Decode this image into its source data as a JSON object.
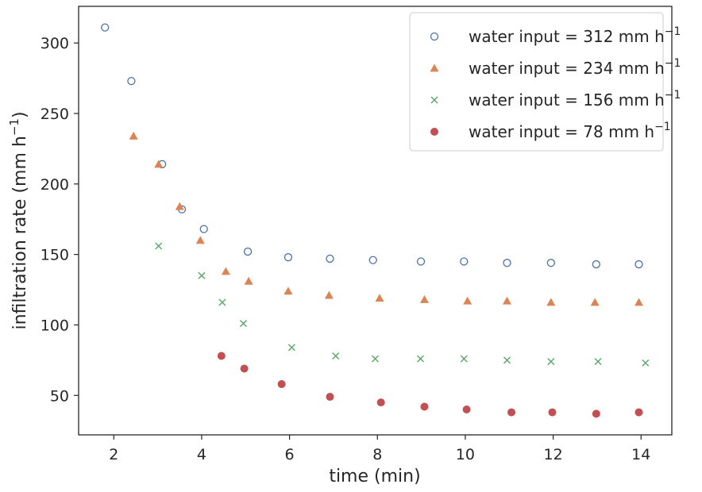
{
  "chart_data": {
    "type": "scatter",
    "title": "",
    "xlabel": "time (min)",
    "ylabel": "infiltration rate (mm h",
    "ylabel_sup": "−1",
    "ylabel_close": ")",
    "xlim": [
      1.2,
      14.7
    ],
    "ylim": [
      22,
      326
    ],
    "xticks": [
      2,
      4,
      6,
      8,
      10,
      12,
      14
    ],
    "yticks": [
      50,
      100,
      150,
      200,
      250,
      300
    ],
    "grid": false,
    "legend_position": "top-right",
    "series": [
      {
        "name": "water input = 312 mm h",
        "name_sup": "−1",
        "marker": "open-circle",
        "color": "#4c72b0",
        "x": [
          1.8,
          2.4,
          3.1,
          3.55,
          4.05,
          5.05,
          5.97,
          6.92,
          7.9,
          8.99,
          9.97,
          10.95,
          11.95,
          12.98,
          13.95
        ],
        "y": [
          311,
          273,
          214,
          182,
          168,
          152,
          148,
          147,
          146,
          145,
          145,
          144,
          144,
          143,
          143
        ]
      },
      {
        "name": "water input = 234 mm h",
        "name_sup": "−1",
        "marker": "triangle",
        "color": "#dd8452",
        "x": [
          2.45,
          3.02,
          3.5,
          3.97,
          4.55,
          5.07,
          5.97,
          6.9,
          8.05,
          9.07,
          10.05,
          10.95,
          11.95,
          12.95,
          13.95
        ],
        "y": [
          234,
          214,
          184,
          160,
          138,
          131,
          124,
          121,
          119,
          118,
          117,
          117,
          116,
          116,
          116
        ]
      },
      {
        "name": "water input = 156 mm h",
        "name_sup": "−1",
        "marker": "x",
        "color": "#55a868",
        "x": [
          3.02,
          4.0,
          4.47,
          4.95,
          6.05,
          7.05,
          7.95,
          8.98,
          9.97,
          10.95,
          11.95,
          13.02,
          14.1
        ],
        "y": [
          156,
          135,
          116,
          101,
          84,
          78,
          76,
          76,
          76,
          75,
          74,
          74,
          73
        ]
      },
      {
        "name": "water input = 78 mm h",
        "name_sup": "−1",
        "marker": "filled-circle",
        "color": "#c44e52",
        "x": [
          4.45,
          4.97,
          5.82,
          6.92,
          8.08,
          9.07,
          10.03,
          11.05,
          11.98,
          12.98,
          13.95
        ],
        "y": [
          78,
          69,
          58,
          49,
          45,
          42,
          40,
          38,
          38,
          37,
          38
        ]
      }
    ]
  }
}
